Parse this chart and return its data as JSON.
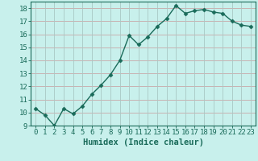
{
  "x": [
    0,
    1,
    2,
    3,
    4,
    5,
    6,
    7,
    8,
    9,
    10,
    11,
    12,
    13,
    14,
    15,
    16,
    17,
    18,
    19,
    20,
    21,
    22,
    23
  ],
  "y": [
    10.3,
    9.8,
    9.0,
    10.3,
    9.9,
    10.5,
    11.4,
    12.1,
    12.9,
    14.0,
    15.9,
    15.2,
    15.8,
    16.6,
    17.2,
    18.2,
    17.6,
    17.8,
    17.9,
    17.7,
    17.6,
    17.0,
    16.7,
    16.6
  ],
  "line_color": "#1a6b5a",
  "marker": "D",
  "marker_size": 2.5,
  "bg_color": "#c8f0ec",
  "grid_color_h": "#c8a8a8",
  "grid_color_v": "#a8c8c4",
  "xlabel": "Humidex (Indice chaleur)",
  "ylim": [
    9,
    18.5
  ],
  "xlim": [
    -0.5,
    23.5
  ],
  "yticks": [
    9,
    10,
    11,
    12,
    13,
    14,
    15,
    16,
    17,
    18
  ],
  "xticks": [
    0,
    1,
    2,
    3,
    4,
    5,
    6,
    7,
    8,
    9,
    10,
    11,
    12,
    13,
    14,
    15,
    16,
    17,
    18,
    19,
    20,
    21,
    22,
    23
  ],
  "tick_label_fontsize": 6.5,
  "xlabel_fontsize": 7.5,
  "line_width": 1.0
}
